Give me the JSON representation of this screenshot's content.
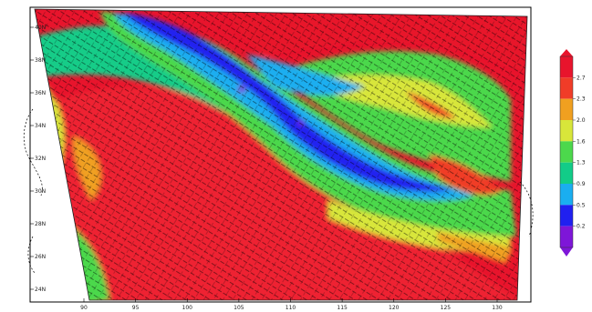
{
  "map": {
    "type": "filled-contour wind field on projected lat-lon domain",
    "background": "#ffffff",
    "frame_color": "#000000",
    "y_tick_labels": [
      "40N",
      "38N",
      "36N",
      "34N",
      "32N",
      "30N",
      "28N",
      "26N",
      "24N"
    ],
    "x_tick_labels": [
      "90",
      "95",
      "100",
      "105",
      "110",
      "115",
      "120",
      "125",
      "130"
    ],
    "field_palette": [
      "#7e16d8",
      "#2020f0",
      "#1aaef0",
      "#12cc88",
      "#4cd84c",
      "#d8e63a",
      "#f0a020",
      "#f03c28",
      "#e8142c"
    ],
    "wind_barbs": "dense black line segments overlaid on whole domain",
    "coastlines": "thin dashed black lines"
  },
  "colorbar": {
    "labels": [
      "2.7",
      "2.3",
      "2.0",
      "1.6",
      "1.3",
      "0.9",
      "0.5",
      "0.2"
    ],
    "colors": [
      "#e8142c",
      "#f03c28",
      "#f0a020",
      "#d8e63a",
      "#4cd84c",
      "#12cc88",
      "#1aaef0",
      "#2020f0",
      "#7e16d8"
    ],
    "orientation": "vertical",
    "placement": "right"
  }
}
